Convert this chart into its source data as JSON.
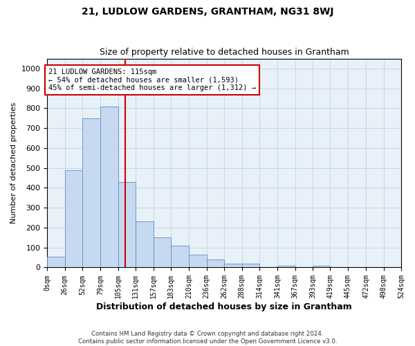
{
  "title": "21, LUDLOW GARDENS, GRANTHAM, NG31 8WJ",
  "subtitle": "Size of property relative to detached houses in Grantham",
  "xlabel": "Distribution of detached houses by size in Grantham",
  "ylabel": "Number of detached properties",
  "property_size": 115,
  "bin_edges": [
    0,
    26,
    52,
    79,
    105,
    131,
    157,
    183,
    210,
    236,
    262,
    288,
    314,
    341,
    367,
    393,
    419,
    445,
    472,
    498,
    524
  ],
  "bar_heights": [
    55,
    490,
    750,
    810,
    430,
    230,
    150,
    110,
    65,
    40,
    20,
    20,
    0,
    10,
    0,
    10,
    0,
    0,
    0,
    0
  ],
  "bar_color": "#c6d9f1",
  "bar_edge_color": "#5b8fc4",
  "red_line_color": "#cc0000",
  "grid_color": "#c8d8ea",
  "background_color": "#e8f0f8",
  "annotation_text": "21 LUDLOW GARDENS: 115sqm\n← 54% of detached houses are smaller (1,593)\n45% of semi-detached houses are larger (1,312) →",
  "annotation_box_color": "#ffffff",
  "annotation_border_color": "#cc0000",
  "footer_line1": "Contains HM Land Registry data © Crown copyright and database right 2024.",
  "footer_line2": "Contains public sector information licensed under the Open Government Licence v3.0.",
  "ylim": [
    0,
    1050
  ],
  "yticks": [
    0,
    100,
    200,
    300,
    400,
    500,
    600,
    700,
    800,
    900,
    1000
  ]
}
